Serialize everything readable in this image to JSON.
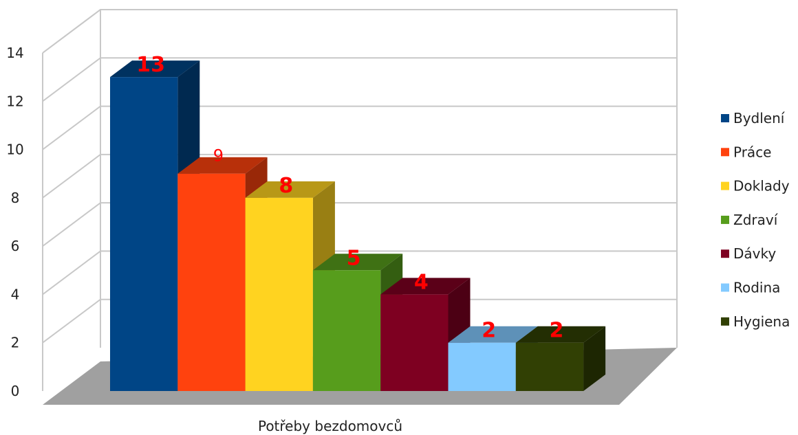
{
  "chart_data": {
    "type": "bar",
    "style": "3d-clustered",
    "title": "",
    "xlabel": "Potřeby bezdomovců",
    "ylabel": "",
    "ylim": [
      0,
      14
    ],
    "yticks": [
      0,
      2,
      4,
      6,
      8,
      10,
      12,
      14
    ],
    "grid": true,
    "legend_position": "right",
    "categories": [
      "Potřeby bezdomovců"
    ],
    "series": [
      {
        "name": "Bydlení",
        "values": [
          13
        ],
        "label": "13",
        "color": "#004586"
      },
      {
        "name": "Práce",
        "values": [
          9
        ],
        "label": "9",
        "color": "#ff420e"
      },
      {
        "name": "Doklady",
        "values": [
          8
        ],
        "label": "8",
        "color": "#ffd320"
      },
      {
        "name": "Zdraví",
        "values": [
          5
        ],
        "label": "5",
        "color": "#579d1c"
      },
      {
        "name": "Dávky",
        "values": [
          4
        ],
        "label": "4",
        "color": "#7e0021"
      },
      {
        "name": "Rodina",
        "values": [
          2
        ],
        "label": "2",
        "color": "#83caff"
      },
      {
        "name": "Hygiena",
        "values": [
          2
        ],
        "label": "2",
        "color": "#314004"
      }
    ]
  }
}
